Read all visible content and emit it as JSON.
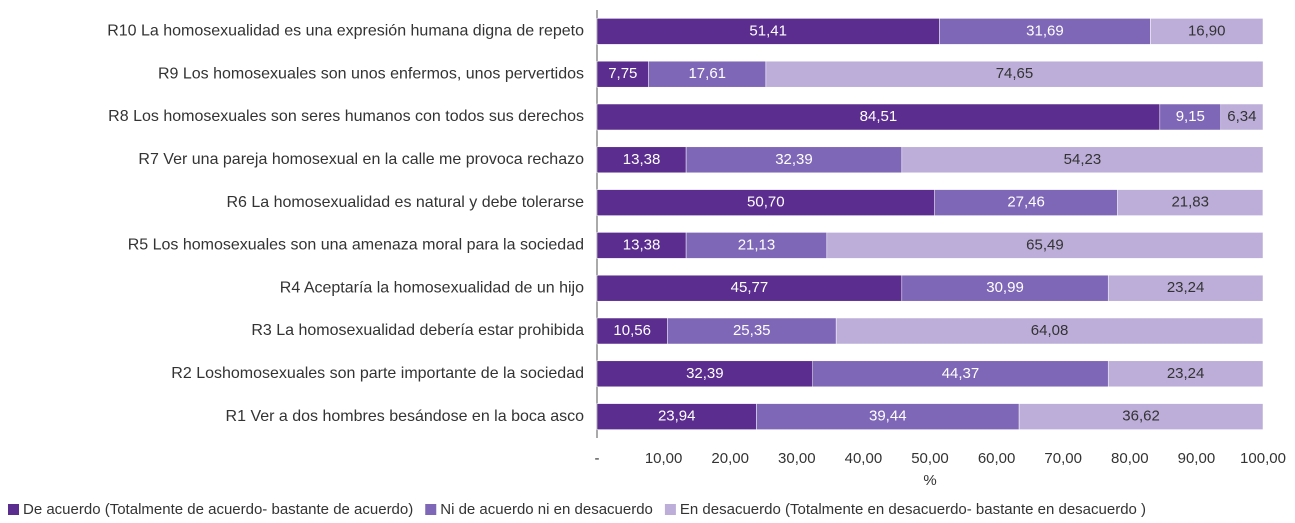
{
  "chart_data": {
    "type": "stacked_barh",
    "categories": [
      "R10 La homosexualidad es una expresión humana digna de repeto",
      "R9 Los homosexuales son unos enfermos, unos pervertidos",
      "R8 Los homosexuales son seres humanos con todos sus derechos",
      "R7 Ver una pareja homosexual en la calle me provoca rechazo",
      "R6 La homosexualidad es natural y debe tolerarse",
      "R5 Los homosexuales son una amenaza moral para la sociedad",
      "R4 Aceptaría la homosexualidad de un hijo",
      "R3 La homosexualidad debería estar prohibida",
      "R2 Loshomosexuales son parte importante de la sociedad",
      "R1 Ver a dos hombres besándose en la boca asco"
    ],
    "series": [
      {
        "name": "De acuerdo (Totalmente de acuerdo- bastante de acuerdo)",
        "color": "#5b2d8e",
        "label_color": "#ffffff",
        "values": [
          51.41,
          7.75,
          84.51,
          13.38,
          50.7,
          13.38,
          45.77,
          10.56,
          32.39,
          23.94
        ],
        "value_labels": [
          "51,41",
          "7,75",
          "84,51",
          "13,38",
          "50,70",
          "13,38",
          "45,77",
          "10,56",
          "32,39",
          "23,94"
        ]
      },
      {
        "name": "Ni de acuerdo ni en desacuerdo",
        "color": "#7e67b6",
        "label_color": "#ffffff",
        "values": [
          31.69,
          17.61,
          9.15,
          32.39,
          27.46,
          21.13,
          30.99,
          25.35,
          44.37,
          39.44
        ],
        "value_labels": [
          "31,69",
          "17,61",
          "9,15",
          "32,39",
          "27,46",
          "21,13",
          "30,99",
          "25,35",
          "44,37",
          "39,44"
        ]
      },
      {
        "name": "En desacuerdo (Totalmente en desacuerdo- bastante en desacuerdo )",
        "color": "#bcaed9",
        "label_color": "#333333",
        "values": [
          16.9,
          74.65,
          6.34,
          54.23,
          21.83,
          65.49,
          23.24,
          64.08,
          23.24,
          36.62
        ],
        "value_labels": [
          "16,90",
          "74,65",
          "6,34",
          "54,23",
          "21,83",
          "65,49",
          "23,24",
          "64,08",
          "23,24",
          "36,62"
        ]
      }
    ],
    "x_label": "%",
    "xlim": [
      0,
      100
    ],
    "xticks": [
      {
        "value": 0,
        "label": "-"
      },
      {
        "value": 10,
        "label": "10,00"
      },
      {
        "value": 20,
        "label": "20,00"
      },
      {
        "value": 30,
        "label": "30,00"
      },
      {
        "value": 40,
        "label": "40,00"
      },
      {
        "value": 50,
        "label": "50,00"
      },
      {
        "value": 60,
        "label": "60,00"
      },
      {
        "value": 70,
        "label": "70,00"
      },
      {
        "value": 80,
        "label": "80,00"
      },
      {
        "value": 90,
        "label": "90,00"
      },
      {
        "value": 100,
        "label": "100,00"
      }
    ],
    "legend": "bottom"
  }
}
